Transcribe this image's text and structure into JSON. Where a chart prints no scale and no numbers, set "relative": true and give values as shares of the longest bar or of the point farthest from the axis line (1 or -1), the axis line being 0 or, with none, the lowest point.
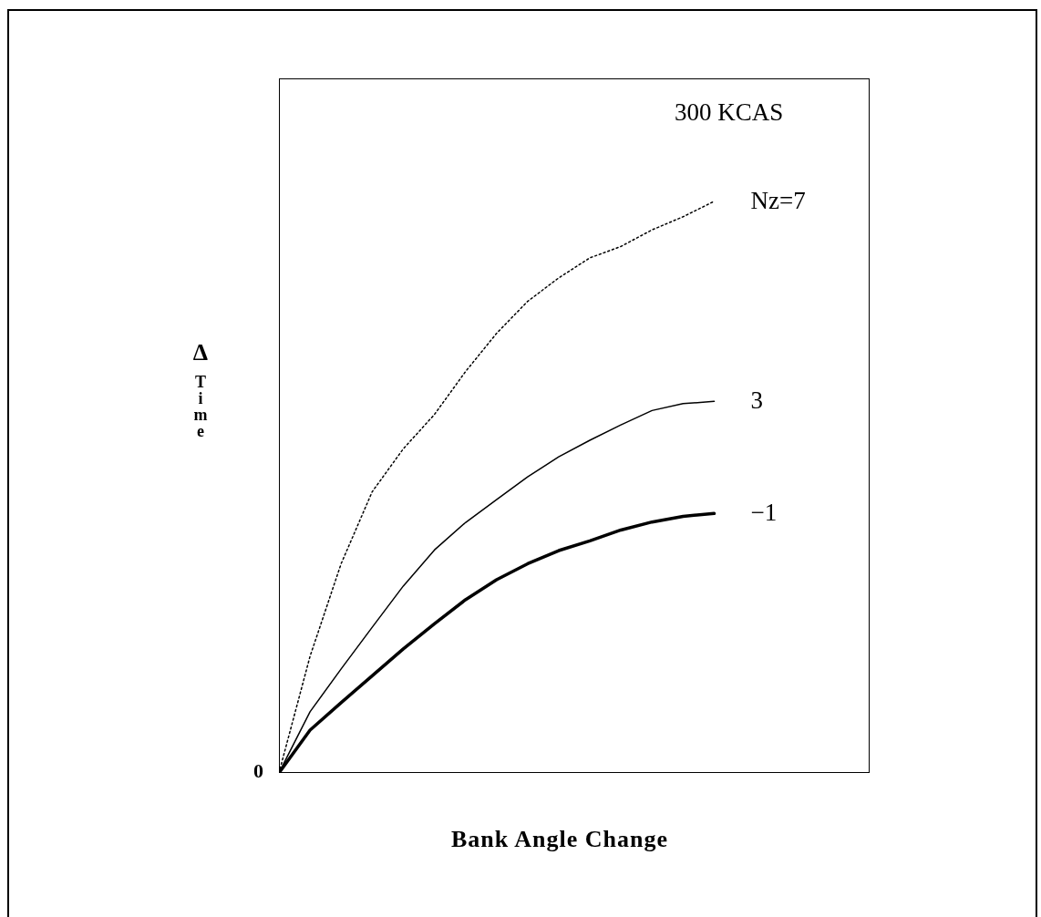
{
  "chart_data": {
    "type": "line",
    "relative": true,
    "xlabel": "Bank Angle Change",
    "ylabel": "Δ Time",
    "annotations": [
      "300 KCAS",
      "0"
    ],
    "categories": [
      null,
      null,
      null,
      null,
      null,
      null,
      null,
      null,
      null,
      null,
      null,
      null,
      null,
      null,
      null,
      null,
      null,
      null,
      null,
      null
    ],
    "series": [
      {
        "name": "Nz=7",
        "color": "#000000",
        "line_style": "dotted",
        "values": [
          0,
          0.204,
          0.366,
          0.492,
          0.567,
          0.627,
          0.702,
          0.769,
          0.825,
          0.866,
          0.901,
          0.921,
          0.95,
          0.973,
          1,
          null,
          null,
          null,
          null,
          null
        ]
      },
      {
        "name": "3",
        "color": "#000000",
        "line_style": "solid",
        "values": [
          0,
          0.107,
          0.182,
          0.255,
          0.327,
          0.39,
          0.438,
          0.478,
          0.518,
          0.553,
          0.582,
          0.609,
          0.634,
          0.646,
          0.65,
          null,
          null,
          null,
          null,
          null
        ]
      },
      {
        "name": "−1",
        "color": "#000000",
        "line_style": "solid",
        "values": [
          0,
          0.075,
          0.123,
          0.17,
          0.217,
          0.261,
          0.303,
          0.338,
          0.366,
          0.389,
          0.406,
          0.425,
          0.439,
          0.449,
          0.454,
          null,
          null,
          null,
          null,
          null
        ]
      }
    ],
    "grid": false,
    "legend": false,
    "marker": "none"
  }
}
